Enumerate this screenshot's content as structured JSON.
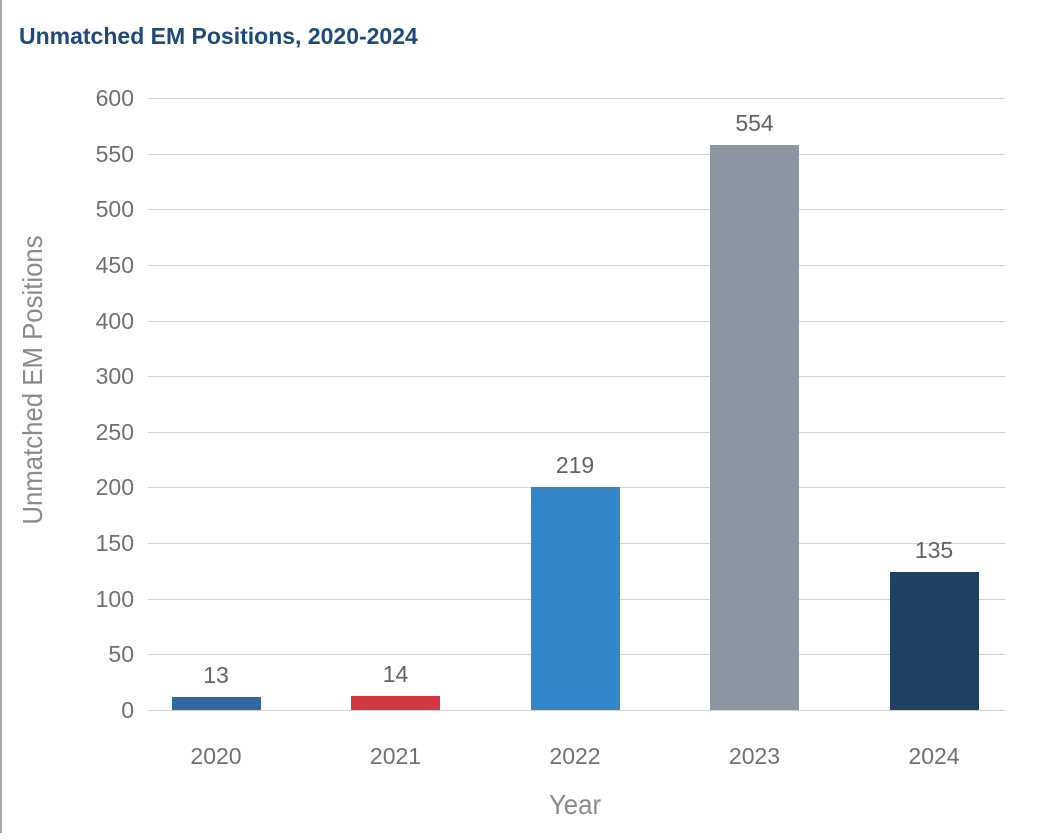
{
  "header": {
    "title": "Unmatched EM Positions, 2020-2024"
  },
  "chart_data": {
    "type": "bar",
    "title": "Unmatched EM Positions, 2020-2024",
    "xlabel": "Year",
    "ylabel": "Unmatched EM Positions",
    "categories": [
      "2020",
      "2021",
      "2022",
      "2023",
      "2024"
    ],
    "values": [
      13,
      14,
      219,
      554,
      135
    ],
    "bar_colors": [
      "#2e6a9f",
      "#d13843",
      "#3386c7",
      "#8c96a2",
      "#1d4064"
    ],
    "ylim": [
      0,
      600
    ],
    "ytick_labels": [
      "600",
      "550",
      "500",
      "450",
      "400",
      "300",
      "250",
      "200",
      "150",
      "100",
      "50",
      "0"
    ],
    "grid": true,
    "legend": false
  },
  "colors": {
    "title_text": "#1c4a7e",
    "axis_tick_text": "#707070",
    "axis_title_text": "#8a8a8a",
    "value_label_text": "#636363",
    "gridline": "#d3d3d3",
    "left_border": "#a8a8a8"
  }
}
